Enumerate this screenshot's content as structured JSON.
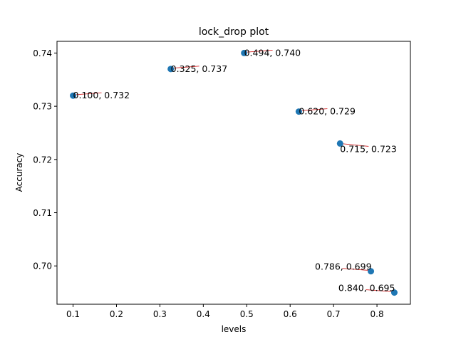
{
  "chart_data": {
    "type": "scatter",
    "title": "lock_drop plot",
    "xlabel": "levels",
    "ylabel": "Accuracy",
    "xlim": [
      0.063,
      0.877
    ],
    "ylim": [
      0.6928,
      0.7422
    ],
    "xticks": [
      0.1,
      0.2,
      0.3,
      0.4,
      0.5,
      0.6,
      0.7,
      0.8
    ],
    "xtick_labels": [
      "0.1",
      "0.2",
      "0.3",
      "0.4",
      "0.5",
      "0.6",
      "0.7",
      "0.8"
    ],
    "yticks": [
      0.7,
      0.71,
      0.72,
      0.73,
      0.74
    ],
    "ytick_labels": [
      "0.70",
      "0.71",
      "0.72",
      "0.73",
      "0.74"
    ],
    "grid": false,
    "marker_color": "#1f77b4",
    "leader_line_color": "#d62728",
    "points": [
      {
        "x": 0.1,
        "y": 0.732,
        "label": "0.100, 0.732",
        "label_side": "right"
      },
      {
        "x": 0.325,
        "y": 0.737,
        "label": "0.325, 0.737",
        "label_side": "right"
      },
      {
        "x": 0.494,
        "y": 0.74,
        "label": "0.494, 0.740",
        "label_side": "right"
      },
      {
        "x": 0.62,
        "y": 0.729,
        "label": "0.620, 0.729",
        "label_side": "right"
      },
      {
        "x": 0.715,
        "y": 0.723,
        "label": "0.715, 0.723",
        "label_side": "right-below"
      },
      {
        "x": 0.786,
        "y": 0.699,
        "label": "0.786, 0.699",
        "label_side": "left"
      },
      {
        "x": 0.84,
        "y": 0.695,
        "label": "0.840, 0.695",
        "label_side": "left"
      }
    ]
  }
}
